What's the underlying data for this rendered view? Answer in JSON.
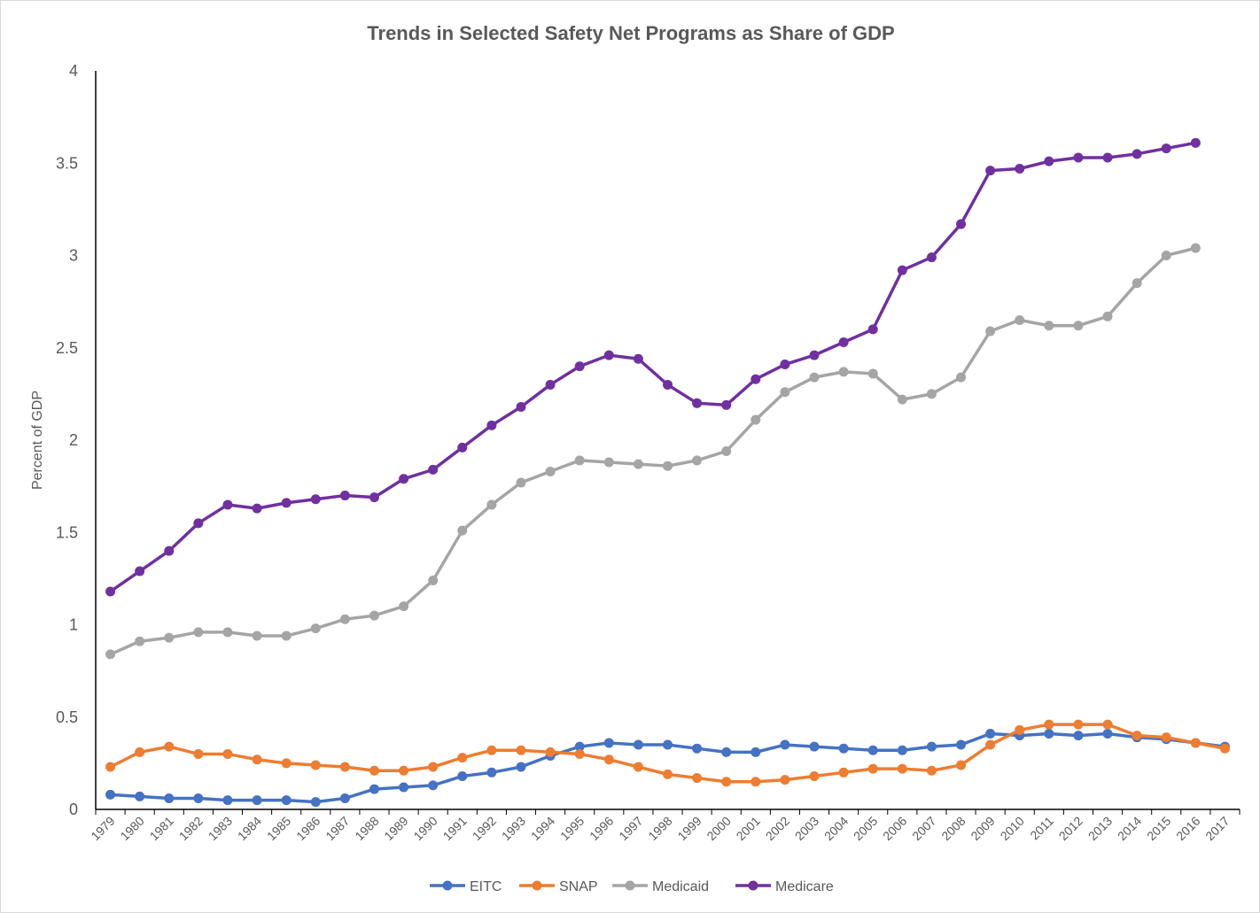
{
  "chart_data": {
    "type": "line",
    "title": "Trends in Selected Safety Net Programs as Share of GDP",
    "xlabel": "",
    "ylabel": "Percent of GDP",
    "ylim": [
      0,
      4
    ],
    "yticks": [
      "0",
      "0.5",
      "1",
      "1.5",
      "2",
      "2.5",
      "3",
      "3.5",
      "4"
    ],
    "grid": false,
    "legend_position": "bottom",
    "categories": [
      "1979",
      "1980",
      "1981",
      "1982",
      "1983",
      "1984",
      "1985",
      "1986",
      "1987",
      "1988",
      "1989",
      "1990",
      "1991",
      "1992",
      "1993",
      "1994",
      "1995",
      "1996",
      "1997",
      "1998",
      "1999",
      "2000",
      "2001",
      "2002",
      "2003",
      "2004",
      "2005",
      "2006",
      "2007",
      "2008",
      "2009",
      "2010",
      "2011",
      "2012",
      "2013",
      "2014",
      "2015",
      "2016",
      "2017"
    ],
    "series": [
      {
        "name": "EITC",
        "color": "#4472c4",
        "values": [
          0.08,
          0.07,
          0.06,
          0.06,
          0.05,
          0.05,
          0.05,
          0.04,
          0.06,
          0.11,
          0.12,
          0.13,
          0.18,
          0.2,
          0.23,
          0.29,
          0.34,
          0.36,
          0.35,
          0.35,
          0.33,
          0.31,
          0.31,
          0.35,
          0.34,
          0.33,
          0.32,
          0.32,
          0.34,
          0.35,
          0.41,
          0.4,
          0.41,
          0.4,
          0.41,
          0.39,
          0.38,
          0.36,
          0.34
        ]
      },
      {
        "name": "SNAP",
        "color": "#ed7d31",
        "values": [
          0.23,
          0.31,
          0.34,
          0.3,
          0.3,
          0.27,
          0.25,
          0.24,
          0.23,
          0.21,
          0.21,
          0.23,
          0.28,
          0.32,
          0.32,
          0.31,
          0.3,
          0.27,
          0.23,
          0.19,
          0.17,
          0.15,
          0.15,
          0.16,
          0.18,
          0.2,
          0.22,
          0.22,
          0.21,
          0.24,
          0.35,
          0.43,
          0.46,
          0.46,
          0.46,
          0.4,
          0.39,
          0.36,
          0.33
        ]
      },
      {
        "name": "Medicaid",
        "color": "#a5a5a5",
        "values": [
          0.84,
          0.91,
          0.93,
          0.96,
          0.96,
          0.94,
          0.94,
          0.98,
          1.03,
          1.05,
          1.1,
          1.24,
          1.51,
          1.65,
          1.77,
          1.83,
          1.89,
          1.88,
          1.87,
          1.86,
          1.89,
          1.94,
          2.11,
          2.26,
          2.34,
          2.37,
          2.36,
          2.22,
          2.25,
          2.34,
          2.59,
          2.65,
          2.62,
          2.62,
          2.67,
          2.85,
          3.0,
          3.04,
          null
        ]
      },
      {
        "name": "Medicare",
        "color": "#7030a0",
        "values": [
          1.18,
          1.29,
          1.4,
          1.55,
          1.65,
          1.63,
          1.66,
          1.68,
          1.7,
          1.69,
          1.79,
          1.84,
          1.96,
          2.08,
          2.18,
          2.3,
          2.4,
          2.46,
          2.44,
          2.3,
          2.2,
          2.19,
          2.33,
          2.41,
          2.46,
          2.53,
          2.6,
          2.92,
          2.99,
          3.17,
          3.46,
          3.47,
          3.51,
          3.53,
          3.53,
          3.55,
          3.58,
          3.61,
          null
        ]
      }
    ]
  }
}
